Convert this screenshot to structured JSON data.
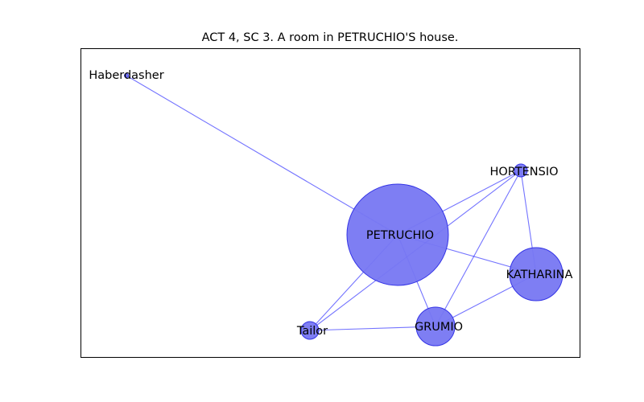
{
  "figure": {
    "title": "ACT 4, SC 3. A room in PETRUCHIO'S house."
  },
  "graph": {
    "node_color": "#7777f2",
    "node_stroke": "#3434e6",
    "edge_color": "#0000ff",
    "nodes": [
      {
        "id": "Haberdasher",
        "label": "Haberdasher",
        "size": "tiny"
      },
      {
        "id": "HORTENSIO",
        "label": "HORTENSIO",
        "size": "small"
      },
      {
        "id": "PETRUCHIO",
        "label": "PETRUCHIO",
        "size": "largest"
      },
      {
        "id": "KATHARINA",
        "label": "KATHARINA",
        "size": "large"
      },
      {
        "id": "GRUMIO",
        "label": "GRUMIO",
        "size": "medium"
      },
      {
        "id": "Tailor",
        "label": "Tailor",
        "size": "small"
      }
    ],
    "edges": [
      {
        "source": "Haberdasher",
        "target": "PETRUCHIO"
      },
      {
        "source": "PETRUCHIO",
        "target": "HORTENSIO"
      },
      {
        "source": "PETRUCHIO",
        "target": "KATHARINA"
      },
      {
        "source": "PETRUCHIO",
        "target": "GRUMIO"
      },
      {
        "source": "PETRUCHIO",
        "target": "Tailor"
      },
      {
        "source": "HORTENSIO",
        "target": "KATHARINA"
      },
      {
        "source": "HORTENSIO",
        "target": "GRUMIO"
      },
      {
        "source": "HORTENSIO",
        "target": "Tailor"
      },
      {
        "source": "KATHARINA",
        "target": "GRUMIO"
      },
      {
        "source": "GRUMIO",
        "target": "Tailor"
      }
    ]
  }
}
